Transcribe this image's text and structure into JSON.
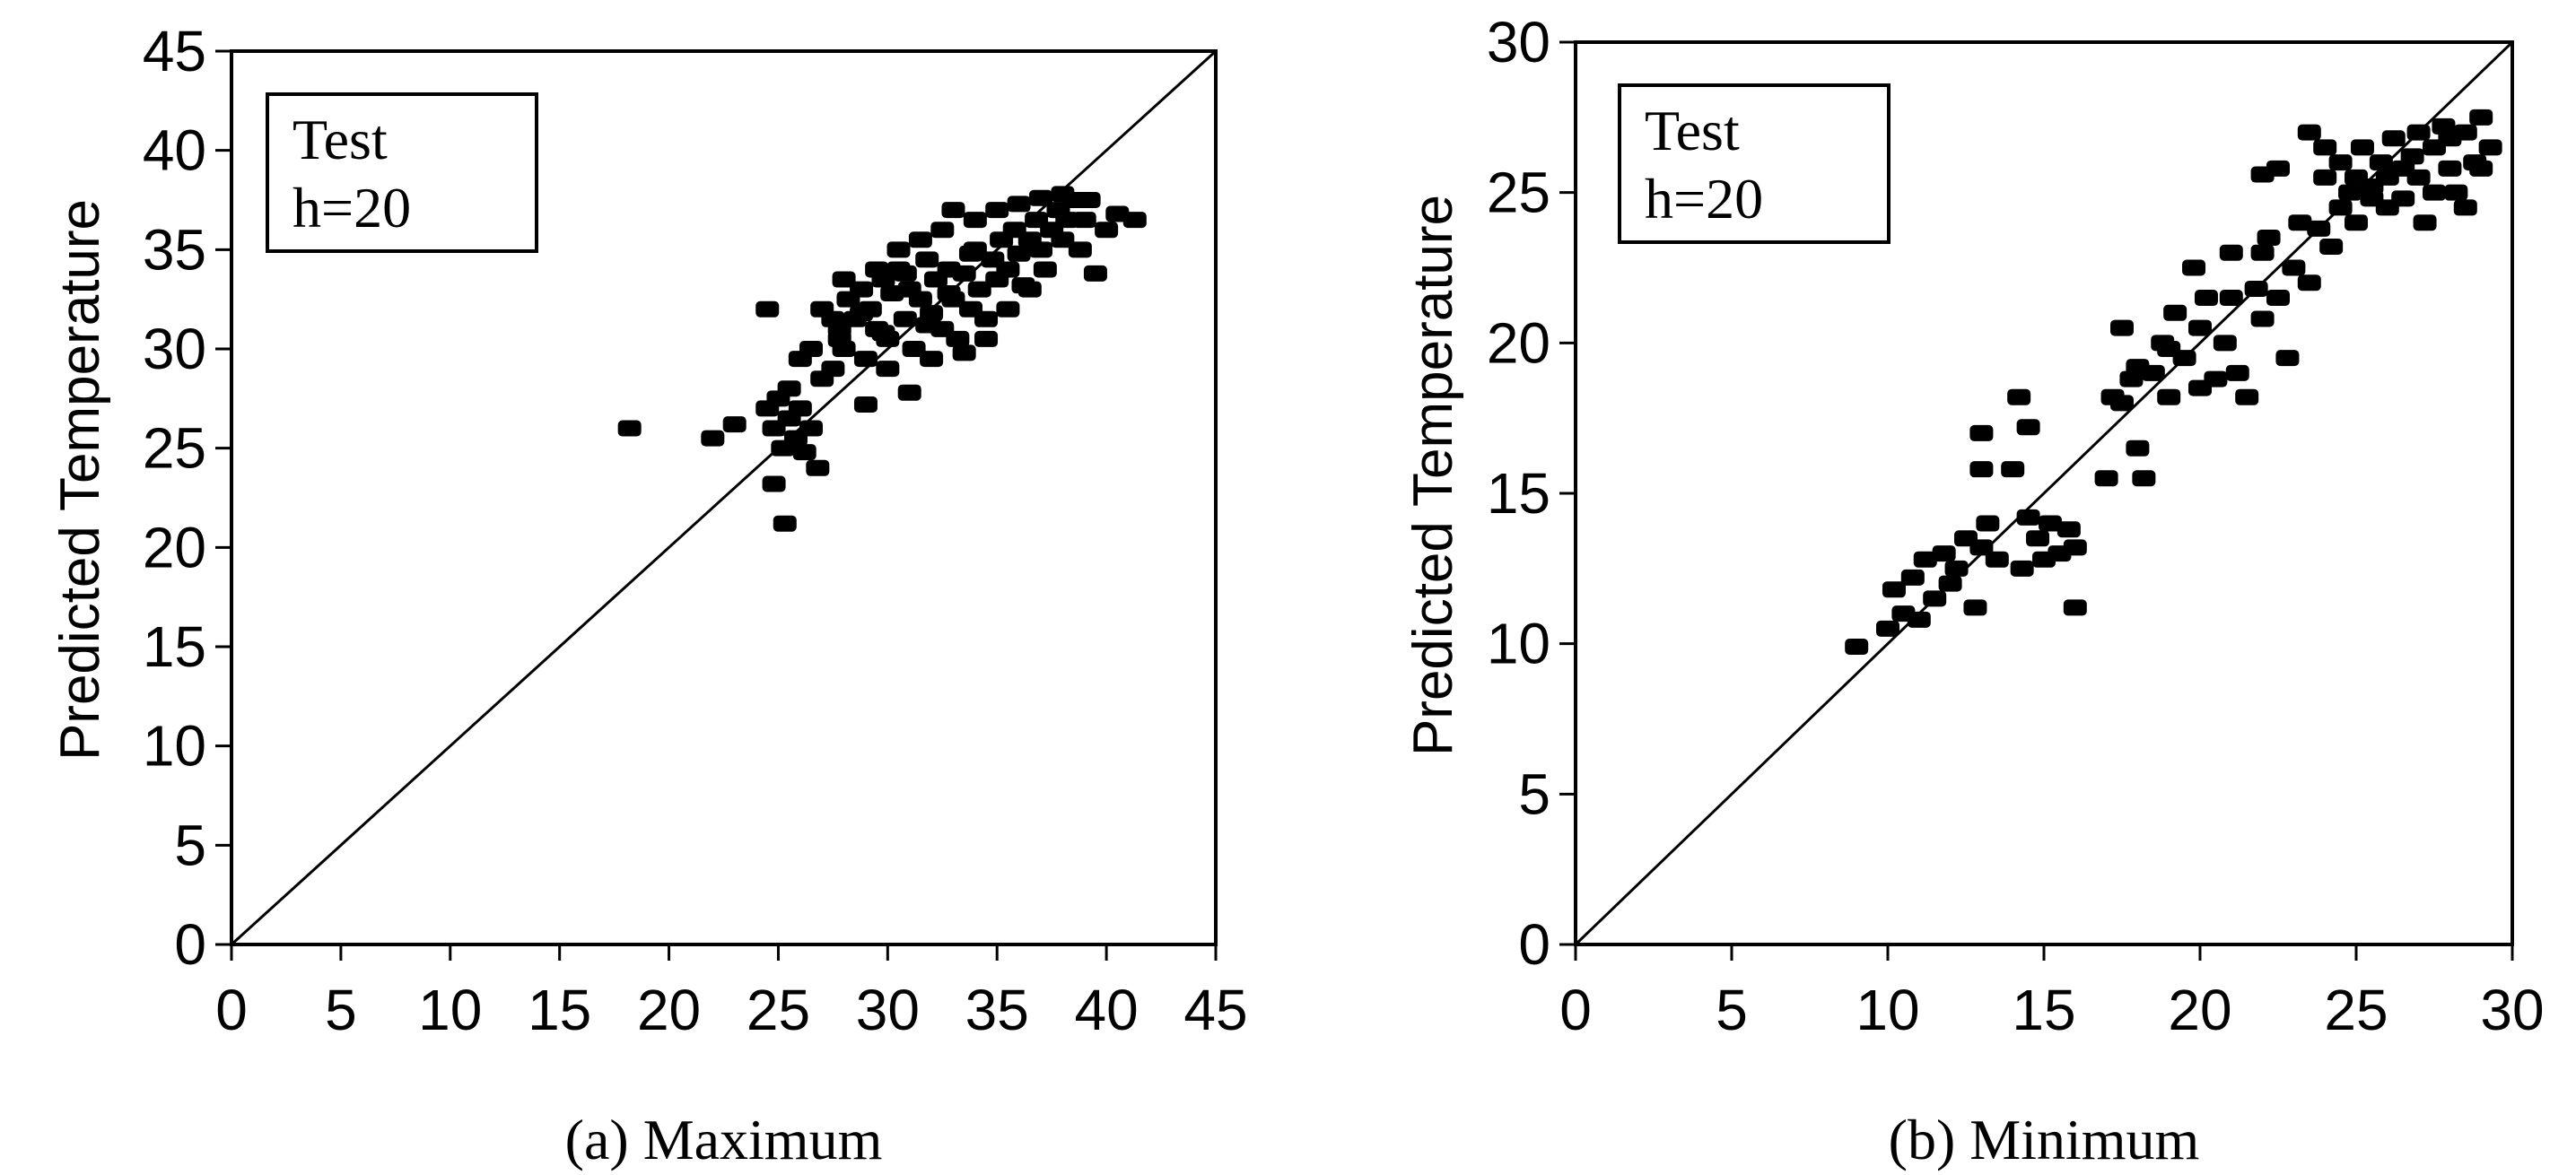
{
  "chart_data": [
    {
      "type": "scatter",
      "caption": "(a) Maximum",
      "xlabel": "",
      "ylabel": "Predicted Temperature",
      "xlim": [
        0,
        45
      ],
      "ylim": [
        0,
        45
      ],
      "xticks": [
        0,
        5,
        10,
        15,
        20,
        25,
        30,
        35,
        40,
        45
      ],
      "yticks": [
        0,
        5,
        10,
        15,
        20,
        25,
        30,
        35,
        40,
        45
      ],
      "box_lines": [
        "Test",
        "h=20"
      ],
      "reference_line": "y = x",
      "grid": false,
      "marker_color": "#000000",
      "points": [
        [
          18.2,
          26.0
        ],
        [
          22.0,
          25.5
        ],
        [
          23.0,
          26.2
        ],
        [
          24.5,
          32.0
        ],
        [
          24.8,
          23.2
        ],
        [
          25.3,
          21.2
        ],
        [
          24.5,
          27.0
        ],
        [
          24.8,
          26.0
        ],
        [
          25.0,
          27.5
        ],
        [
          25.2,
          25.0
        ],
        [
          25.5,
          26.5
        ],
        [
          25.8,
          25.5
        ],
        [
          26.0,
          27.0
        ],
        [
          26.2,
          24.8
        ],
        [
          26.5,
          26.0
        ],
        [
          26.8,
          24.0
        ],
        [
          25.5,
          28.0
        ],
        [
          26.0,
          29.5
        ],
        [
          26.5,
          30.0
        ],
        [
          27.0,
          28.5
        ],
        [
          27.5,
          29.0
        ],
        [
          27.8,
          31.0
        ],
        [
          28.0,
          30.0
        ],
        [
          28.2,
          32.5
        ],
        [
          28.5,
          31.5
        ],
        [
          28.8,
          33.0
        ],
        [
          29.0,
          29.5
        ],
        [
          29.2,
          32.0
        ],
        [
          29.5,
          31.0
        ],
        [
          29.8,
          33.5
        ],
        [
          30.0,
          30.5
        ],
        [
          30.2,
          32.8
        ],
        [
          30.5,
          34.0
        ],
        [
          30.8,
          31.5
        ],
        [
          31.0,
          33.0
        ],
        [
          31.2,
          30.0
        ],
        [
          31.5,
          32.5
        ],
        [
          31.8,
          34.5
        ],
        [
          32.0,
          31.8
        ],
        [
          32.2,
          33.5
        ],
        [
          32.5,
          31.0
        ],
        [
          32.8,
          34.0
        ],
        [
          33.0,
          32.5
        ],
        [
          33.2,
          30.5
        ],
        [
          33.5,
          33.8
        ],
        [
          33.8,
          32.0
        ],
        [
          34.0,
          35.0
        ],
        [
          34.2,
          33.0
        ],
        [
          34.5,
          31.5
        ],
        [
          34.8,
          34.5
        ],
        [
          35.0,
          33.5
        ],
        [
          35.2,
          35.5
        ],
        [
          35.5,
          34.0
        ],
        [
          35.8,
          36.0
        ],
        [
          36.0,
          34.8
        ],
        [
          36.2,
          33.2
        ],
        [
          36.5,
          35.5
        ],
        [
          36.8,
          36.5
        ],
        [
          37.0,
          35.0
        ],
        [
          37.2,
          34.0
        ],
        [
          37.5,
          36.0
        ],
        [
          37.8,
          37.0
        ],
        [
          38.0,
          35.5
        ],
        [
          38.2,
          36.5
        ],
        [
          38.5,
          37.5
        ],
        [
          38.8,
          35.0
        ],
        [
          39.0,
          36.5
        ],
        [
          39.5,
          33.8
        ],
        [
          40.0,
          36.0
        ],
        [
          40.5,
          36.8
        ],
        [
          41.3,
          36.5
        ],
        [
          39.2,
          37.5
        ],
        [
          33.0,
          37.0
        ],
        [
          30.0,
          29.0
        ],
        [
          31.0,
          27.8
        ],
        [
          29.0,
          27.2
        ],
        [
          32.0,
          29.5
        ],
        [
          33.5,
          29.8
        ],
        [
          27.5,
          31.5
        ],
        [
          28.0,
          33.5
        ],
        [
          29.5,
          34.0
        ],
        [
          30.5,
          35.0
        ],
        [
          31.5,
          35.5
        ],
        [
          32.5,
          36.0
        ],
        [
          34.0,
          36.5
        ],
        [
          35.0,
          37.0
        ],
        [
          36.0,
          37.3
        ],
        [
          37.0,
          37.6
        ],
        [
          38.0,
          37.8
        ],
        [
          36.5,
          33.0
        ],
        [
          35.5,
          32.0
        ],
        [
          34.5,
          30.5
        ],
        [
          33.8,
          34.8
        ],
        [
          32.8,
          32.8
        ],
        [
          31.8,
          31.2
        ],
        [
          30.8,
          33.8
        ],
        [
          29.8,
          30.8
        ],
        [
          28.8,
          31.8
        ],
        [
          27.8,
          30.5
        ],
        [
          27.0,
          32.0
        ]
      ]
    },
    {
      "type": "scatter",
      "caption": "(b) Minimum",
      "xlabel": "",
      "ylabel": "Predicted Temperature",
      "xlim": [
        0,
        30
      ],
      "ylim": [
        0,
        30
      ],
      "xticks": [
        0,
        5,
        10,
        15,
        20,
        25,
        30
      ],
      "yticks": [
        0,
        5,
        10,
        15,
        20,
        25,
        30
      ],
      "box_lines": [
        "Test",
        "h=20"
      ],
      "reference_line": "y = x",
      "grid": false,
      "marker_color": "#000000",
      "points": [
        [
          9.0,
          9.9
        ],
        [
          10.0,
          10.5
        ],
        [
          10.2,
          11.8
        ],
        [
          10.5,
          11.0
        ],
        [
          10.8,
          12.2
        ],
        [
          11.0,
          10.8
        ],
        [
          11.2,
          12.8
        ],
        [
          11.5,
          11.5
        ],
        [
          11.8,
          13.0
        ],
        [
          12.0,
          12.0
        ],
        [
          12.2,
          12.5
        ],
        [
          12.5,
          13.5
        ],
        [
          12.8,
          11.2
        ],
        [
          13.0,
          13.2
        ],
        [
          13.2,
          14.0
        ],
        [
          13.5,
          12.8
        ],
        [
          13.0,
          15.8
        ],
        [
          13.0,
          17.0
        ],
        [
          14.0,
          15.8
        ],
        [
          14.2,
          18.2
        ],
        [
          14.5,
          17.2
        ],
        [
          14.3,
          12.5
        ],
        [
          14.5,
          14.2
        ],
        [
          14.8,
          13.5
        ],
        [
          15.0,
          12.8
        ],
        [
          15.2,
          14.0
        ],
        [
          15.5,
          13.0
        ],
        [
          15.8,
          13.8
        ],
        [
          16.0,
          11.2
        ],
        [
          16.0,
          13.2
        ],
        [
          17.0,
          15.5
        ],
        [
          17.2,
          18.2
        ],
        [
          17.5,
          20.5
        ],
        [
          17.8,
          18.8
        ],
        [
          18.0,
          16.5
        ],
        [
          18.2,
          15.5
        ],
        [
          18.5,
          19.0
        ],
        [
          18.8,
          20.0
        ],
        [
          19.0,
          18.2
        ],
        [
          19.2,
          21.0
        ],
        [
          19.5,
          19.5
        ],
        [
          19.8,
          22.5
        ],
        [
          20.0,
          18.5
        ],
        [
          20.2,
          21.5
        ],
        [
          20.5,
          18.8
        ],
        [
          20.8,
          20.0
        ],
        [
          21.0,
          23.0
        ],
        [
          21.2,
          19.0
        ],
        [
          21.5,
          18.2
        ],
        [
          21.8,
          21.8
        ],
        [
          22.0,
          20.8
        ],
        [
          22.2,
          23.5
        ],
        [
          22.5,
          21.5
        ],
        [
          22.8,
          19.5
        ],
        [
          23.0,
          22.5
        ],
        [
          23.2,
          24.0
        ],
        [
          23.5,
          22.0
        ],
        [
          23.8,
          23.8
        ],
        [
          24.0,
          25.5
        ],
        [
          24.2,
          23.2
        ],
        [
          24.5,
          26.0
        ],
        [
          24.5,
          24.5
        ],
        [
          24.8,
          25.0
        ],
        [
          25.0,
          25.5
        ],
        [
          25.0,
          24.0
        ],
        [
          25.2,
          26.5
        ],
        [
          25.5,
          25.2
        ],
        [
          25.5,
          24.8
        ],
        [
          25.8,
          26.0
        ],
        [
          26.0,
          25.5
        ],
        [
          26.0,
          24.5
        ],
        [
          26.2,
          26.8
        ],
        [
          26.5,
          25.8
        ],
        [
          26.5,
          24.8
        ],
        [
          26.8,
          26.2
        ],
        [
          27.0,
          25.5
        ],
        [
          27.0,
          27.0
        ],
        [
          27.2,
          24.0
        ],
        [
          27.5,
          26.5
        ],
        [
          27.5,
          25.0
        ],
        [
          27.8,
          27.2
        ],
        [
          28.0,
          25.8
        ],
        [
          28.0,
          26.8
        ],
        [
          28.2,
          25.0
        ],
        [
          28.5,
          27.0
        ],
        [
          28.5,
          24.5
        ],
        [
          28.8,
          26.0
        ],
        [
          29.0,
          27.5
        ],
        [
          29.0,
          25.8
        ],
        [
          29.3,
          26.5
        ],
        [
          22.0,
          25.6
        ],
        [
          22.5,
          25.8
        ],
        [
          24.0,
          26.5
        ],
        [
          23.5,
          27.0
        ],
        [
          22.0,
          23.0
        ],
        [
          21.0,
          21.5
        ],
        [
          20.0,
          20.5
        ],
        [
          19.0,
          19.8
        ],
        [
          18.0,
          19.2
        ],
        [
          17.5,
          18.0
        ]
      ]
    }
  ]
}
